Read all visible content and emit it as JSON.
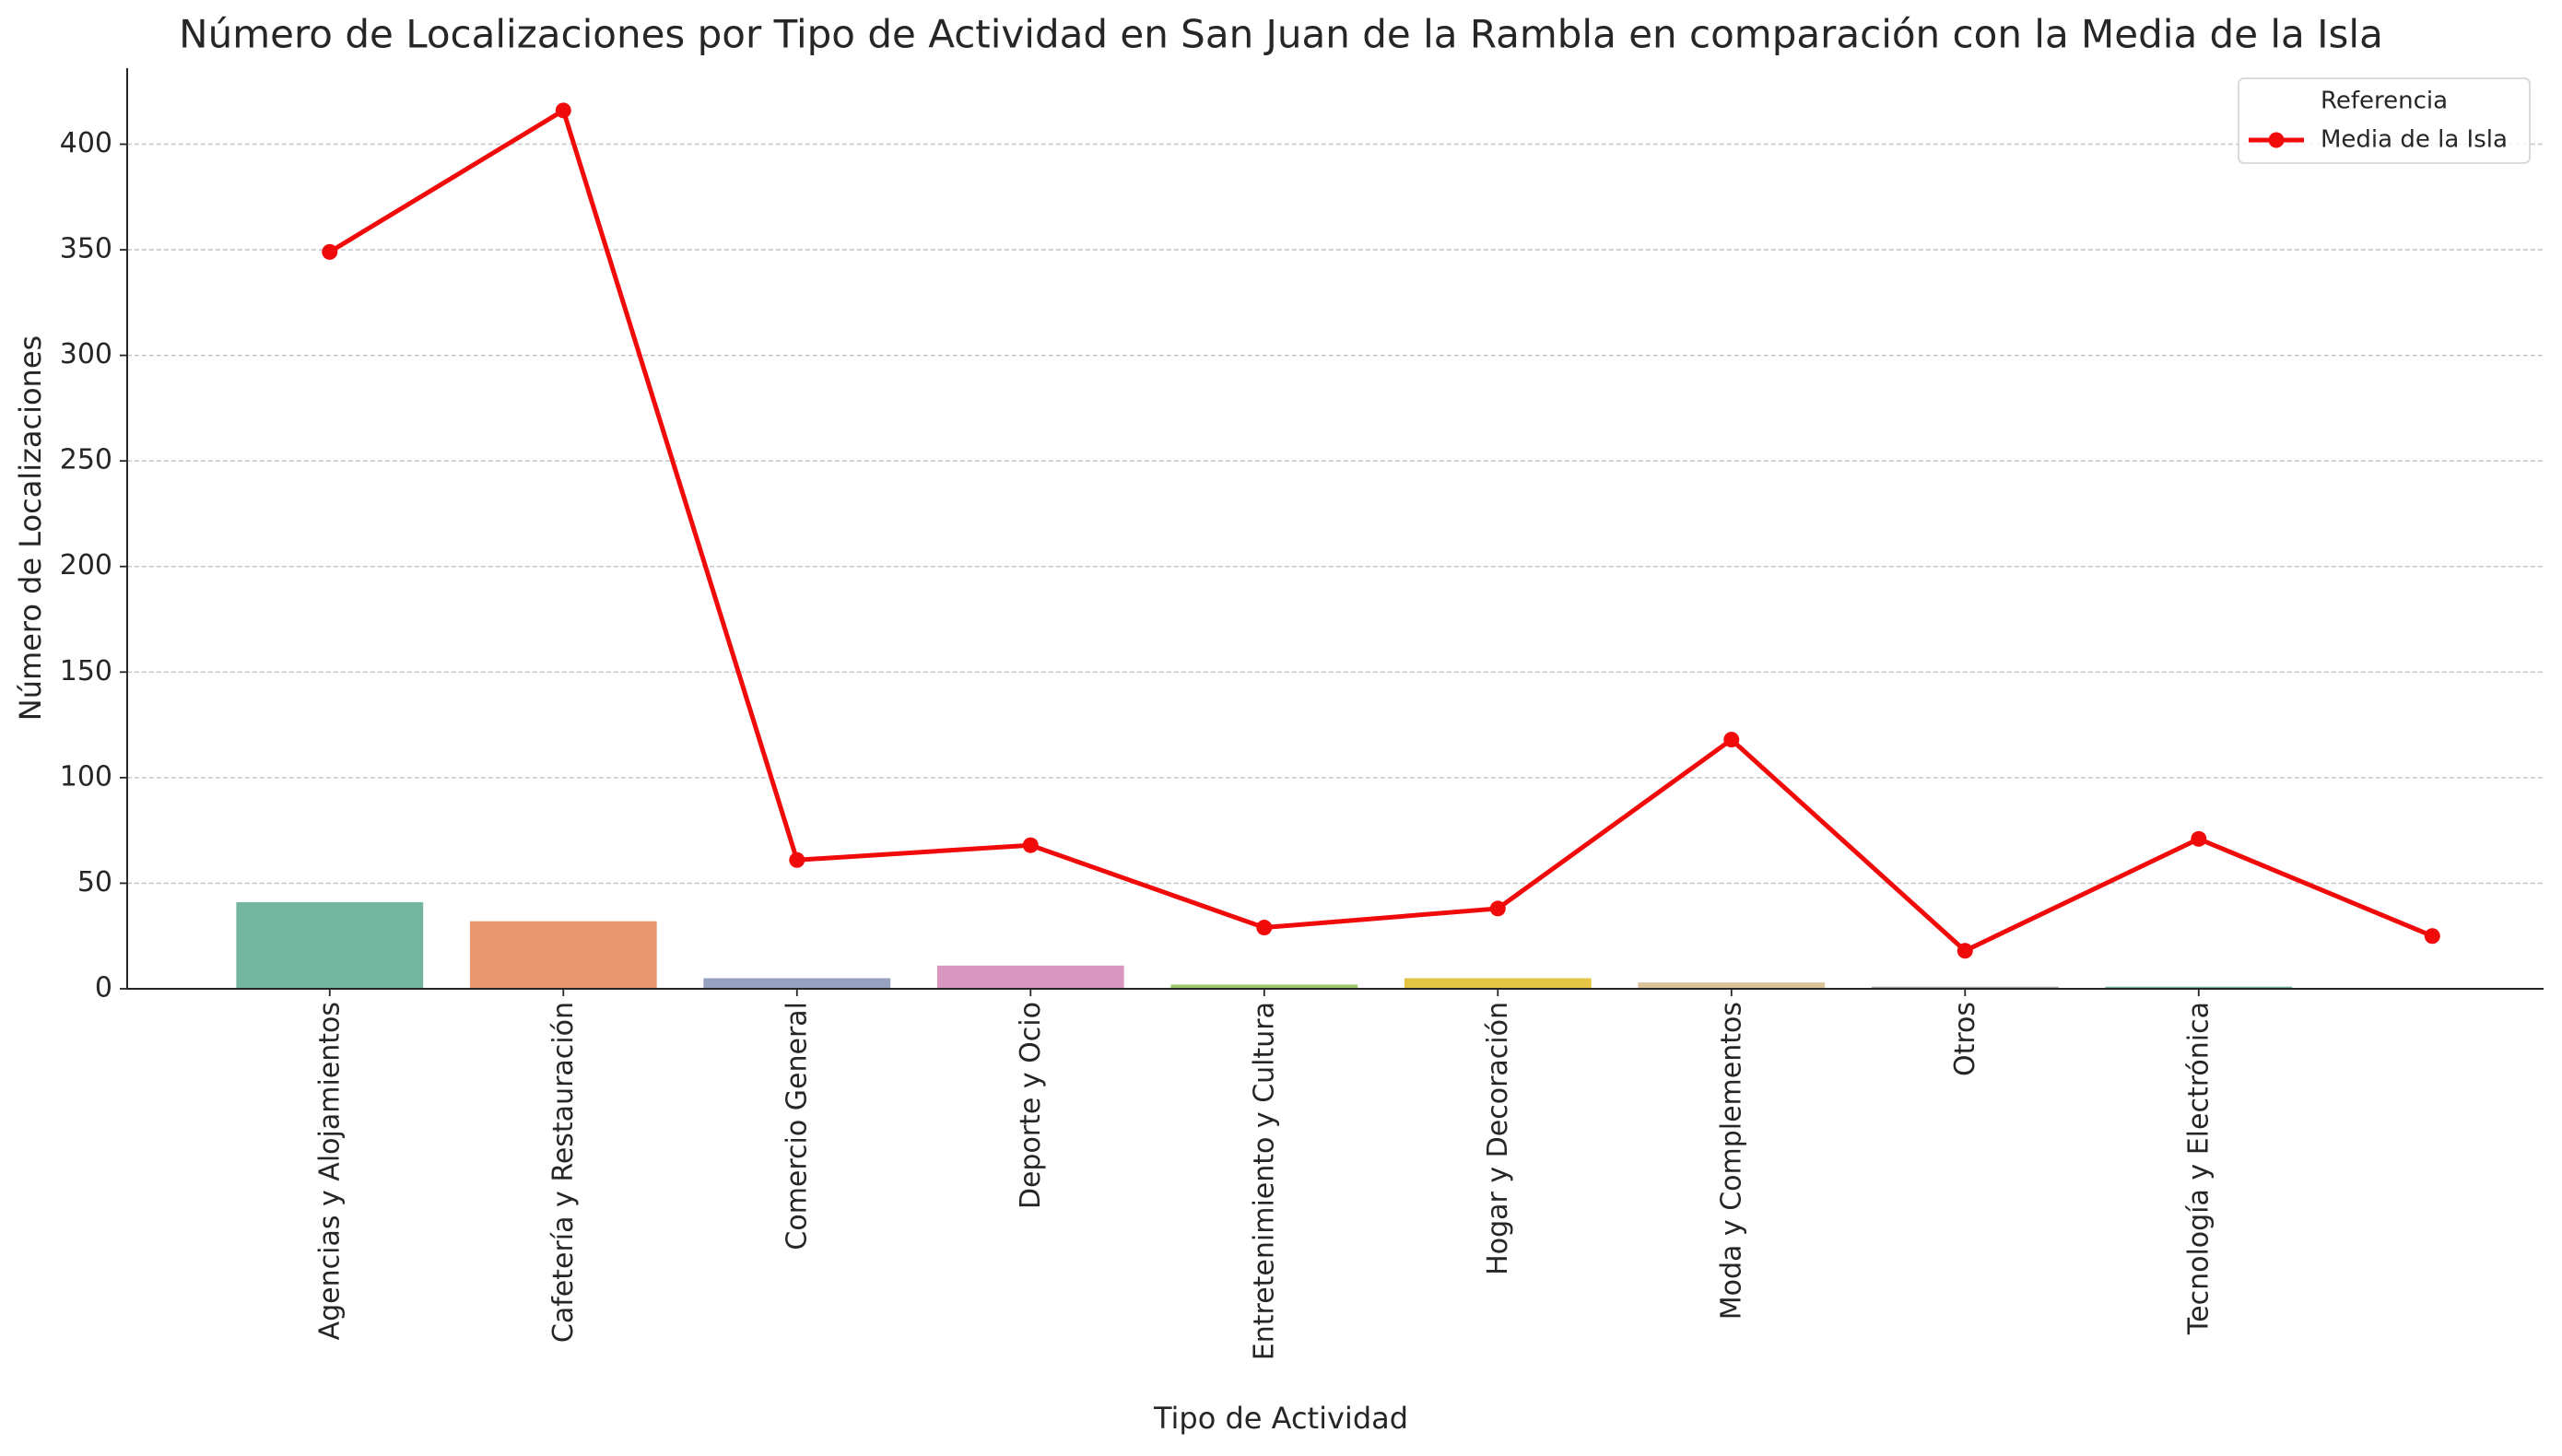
{
  "chart_data": {
    "type": "bar",
    "title": "Número de Localizaciones por Tipo de Actividad en San Juan de la Rambla en comparación con la Media de la Isla",
    "x_label": "Tipo de Actividad",
    "y_label": "Número de Localizaciones",
    "categories": [
      "Agencias y Alojamientos",
      "Cafetería y Restauración",
      "Comercio General",
      "Deporte y Ocio",
      "Entretenimiento y Cultura",
      "Hogar y Decoración",
      "Moda y Complementos",
      "Otros",
      "Tecnología y Electrónica",
      null
    ],
    "values": [
      41,
      32,
      5,
      11,
      2,
      5,
      3,
      1,
      1,
      null
    ],
    "colors": [
      "#73b59f",
      "#e8976f",
      "#96a0bf",
      "#d897c0",
      "#9fc86a",
      "#e5c545",
      "#d9c29a",
      "#a8a8a8",
      "#73b59f",
      "#e8976f"
    ],
    "line": {
      "name": "Media de la Isla",
      "color": "#f00a0a",
      "values": [
        349,
        416,
        61,
        68,
        29,
        38,
        118,
        18,
        71,
        25
      ]
    },
    "legend_title": "Referencia",
    "legend_position": "upper right",
    "ylim": [
      0,
      436
    ],
    "yticks": [
      0,
      50,
      100,
      150,
      200,
      250,
      300,
      350,
      400
    ],
    "grid": true
  }
}
